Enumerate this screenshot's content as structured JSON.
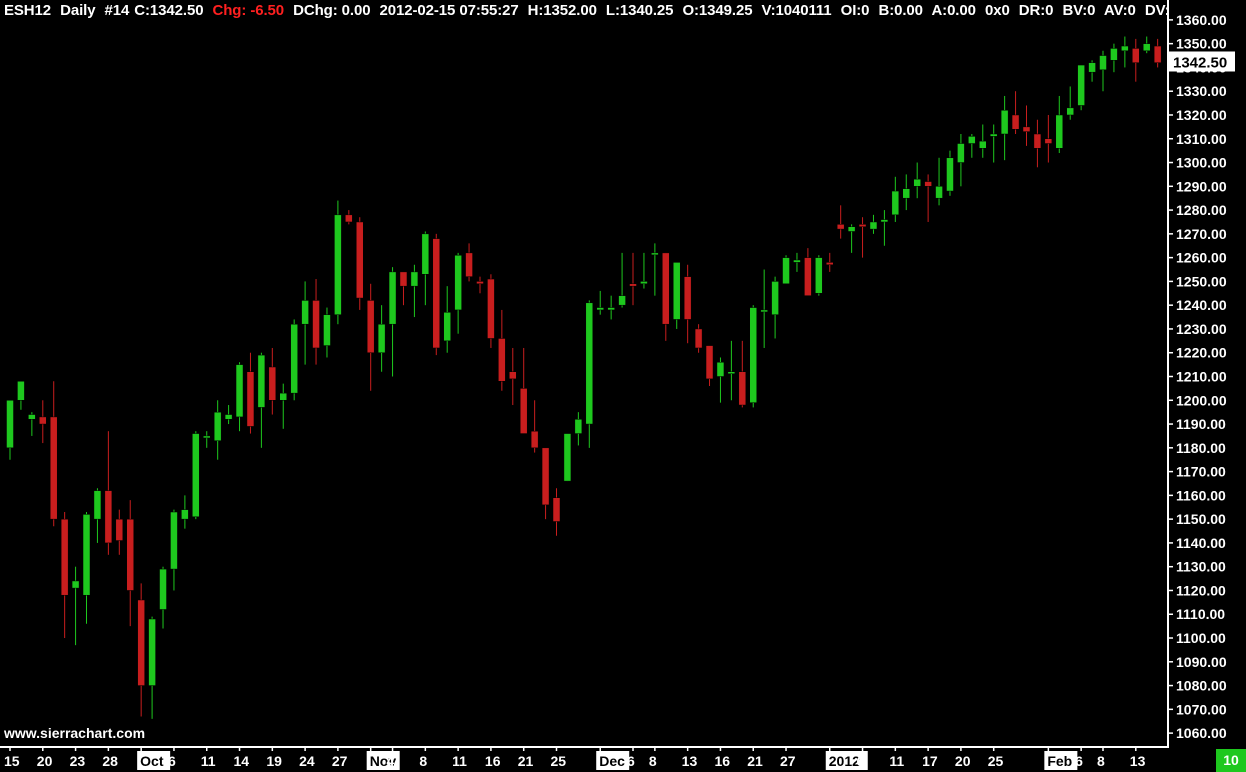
{
  "header": {
    "symbol": "ESH12",
    "timeframe": "Daily",
    "bar_index": "#14",
    "close": "C:1342.50",
    "change": "Chg: -6.50",
    "dchange": "DChg: 0.00",
    "datetime": "2012-02-15 07:55:27",
    "high": "H:1352.00",
    "low": "L:1340.25",
    "open": "O:1349.25",
    "volume": "V:1040111",
    "oi": "OI:0",
    "bid": "B:0.00",
    "ask": "A:0.00",
    "size": "0x0",
    "dr": "DR:0",
    "bv": "BV:0",
    "av": "AV:0",
    "dv": "DV:"
  },
  "watermark": "www.sierrachart.com",
  "badge": "10",
  "colors": {
    "up": "#1ec81e",
    "down": "#c81e1e",
    "wick_up": "#1ec81e",
    "wick_down": "#c81e1e",
    "background": "#000000",
    "axis": "#ffffff",
    "price_label_bg": "#ffffff"
  },
  "chart_data": {
    "type": "candlestick",
    "symbol": "ESH12",
    "ylim": [
      1055,
      1365
    ],
    "yticks": [
      1060,
      1070,
      1080,
      1090,
      1100,
      1110,
      1120,
      1130,
      1140,
      1150,
      1160,
      1170,
      1180,
      1190,
      1200,
      1210,
      1220,
      1230,
      1240,
      1250,
      1260,
      1270,
      1280,
      1290,
      1300,
      1310,
      1320,
      1330,
      1340,
      1350,
      1360
    ],
    "last_price": "1342.50",
    "xticks": [
      {
        "bar": 0,
        "label": "15",
        "month": false
      },
      {
        "bar": 3,
        "label": "20",
        "month": false
      },
      {
        "bar": 6,
        "label": "23",
        "month": false
      },
      {
        "bar": 9,
        "label": "28",
        "month": false
      },
      {
        "bar": 12,
        "label": "Oct",
        "month": true
      },
      {
        "bar": 15,
        "label": "6",
        "month": false
      },
      {
        "bar": 18,
        "label": "11",
        "month": false
      },
      {
        "bar": 21,
        "label": "14",
        "month": false
      },
      {
        "bar": 24,
        "label": "19",
        "month": false
      },
      {
        "bar": 27,
        "label": "24",
        "month": false
      },
      {
        "bar": 30,
        "label": "27",
        "month": false
      },
      {
        "bar": 33,
        "label": "Nov",
        "month": true
      },
      {
        "bar": 35,
        "label": "4",
        "month": false
      },
      {
        "bar": 38,
        "label": "8",
        "month": false
      },
      {
        "bar": 41,
        "label": "11",
        "month": false
      },
      {
        "bar": 44,
        "label": "16",
        "month": false
      },
      {
        "bar": 47,
        "label": "21",
        "month": false
      },
      {
        "bar": 50,
        "label": "25",
        "month": false
      },
      {
        "bar": 54,
        "label": "Dec",
        "month": true
      },
      {
        "bar": 57,
        "label": "6",
        "month": false
      },
      {
        "bar": 59,
        "label": "8",
        "month": false
      },
      {
        "bar": 62,
        "label": "13",
        "month": false
      },
      {
        "bar": 65,
        "label": "16",
        "month": false
      },
      {
        "bar": 68,
        "label": "21",
        "month": false
      },
      {
        "bar": 71,
        "label": "27",
        "month": false
      },
      {
        "bar": 75,
        "label": "2012",
        "month": true
      },
      {
        "bar": 78,
        "label": "6",
        "month": false
      },
      {
        "bar": 81,
        "label": "11",
        "month": false
      },
      {
        "bar": 84,
        "label": "17",
        "month": false
      },
      {
        "bar": 87,
        "label": "20",
        "month": false
      },
      {
        "bar": 90,
        "label": "25",
        "month": false
      },
      {
        "bar": 95,
        "label": "Feb",
        "month": true
      },
      {
        "bar": 98,
        "label": "6",
        "month": false
      },
      {
        "bar": 100,
        "label": "8",
        "month": false
      },
      {
        "bar": 103,
        "label": "13",
        "month": false
      }
    ],
    "bars": [
      [
        1180,
        1190,
        1175,
        1200
      ],
      [
        1200,
        1208,
        1196,
        1208
      ],
      [
        1192,
        1195,
        1185,
        1194
      ],
      [
        1193,
        1200,
        1182,
        1190
      ],
      [
        1193,
        1208,
        1147,
        1150
      ],
      [
        1150,
        1153,
        1100,
        1118
      ],
      [
        1121,
        1130,
        1097,
        1124
      ],
      [
        1118,
        1153,
        1106,
        1152
      ],
      [
        1150,
        1163,
        1140,
        1162
      ],
      [
        1162,
        1187,
        1135,
        1140
      ],
      [
        1150,
        1154,
        1135,
        1141
      ],
      [
        1150,
        1158,
        1105,
        1120
      ],
      [
        1116,
        1123,
        1067,
        1080
      ],
      [
        1080,
        1109,
        1066,
        1108
      ],
      [
        1112,
        1130,
        1104,
        1129
      ],
      [
        1129,
        1154,
        1120,
        1153
      ],
      [
        1150,
        1160,
        1146,
        1154
      ],
      [
        1151,
        1187,
        1150,
        1186
      ],
      [
        1185,
        1187,
        1180,
        1185
      ],
      [
        1183,
        1200,
        1175,
        1195
      ],
      [
        1192,
        1198,
        1190,
        1194
      ],
      [
        1193,
        1216,
        1187,
        1215
      ],
      [
        1212,
        1220,
        1186,
        1189
      ],
      [
        1197,
        1220,
        1180,
        1219
      ],
      [
        1214,
        1222,
        1194,
        1200
      ],
      [
        1200,
        1207,
        1188,
        1203
      ],
      [
        1203,
        1234,
        1200,
        1232
      ],
      [
        1232,
        1250,
        1215,
        1242
      ],
      [
        1242,
        1251,
        1215,
        1222
      ],
      [
        1223,
        1239,
        1218,
        1236
      ],
      [
        1236,
        1284,
        1232,
        1278
      ],
      [
        1278,
        1280,
        1274,
        1275
      ],
      [
        1275,
        1277,
        1238,
        1243
      ],
      [
        1242,
        1249,
        1204,
        1220
      ],
      [
        1220,
        1240,
        1212,
        1232
      ],
      [
        1232,
        1256,
        1210,
        1254
      ],
      [
        1254,
        1253,
        1240,
        1248
      ],
      [
        1248,
        1257,
        1235,
        1254
      ],
      [
        1253,
        1271,
        1240,
        1270
      ],
      [
        1268,
        1270,
        1219,
        1222
      ],
      [
        1225,
        1248,
        1220,
        1237
      ],
      [
        1238,
        1262,
        1228,
        1261
      ],
      [
        1262,
        1266,
        1250,
        1252
      ],
      [
        1250,
        1252,
        1245,
        1249
      ],
      [
        1251,
        1253,
        1222,
        1226
      ],
      [
        1226,
        1238,
        1204,
        1208
      ],
      [
        1212,
        1222,
        1198,
        1209
      ],
      [
        1205,
        1222,
        1187,
        1186
      ],
      [
        1187,
        1200,
        1178,
        1180
      ],
      [
        1180,
        1175,
        1150,
        1156
      ],
      [
        1159,
        1163,
        1143,
        1149
      ],
      [
        1166,
        1185,
        1166,
        1186
      ],
      [
        1186,
        1195,
        1181,
        1192
      ],
      [
        1190,
        1242,
        1180,
        1241
      ],
      [
        1238,
        1246,
        1236,
        1239
      ],
      [
        1238,
        1244,
        1234,
        1239
      ],
      [
        1240,
        1262,
        1239,
        1244
      ],
      [
        1249,
        1262,
        1240,
        1248
      ],
      [
        1249,
        1262,
        1247,
        1250
      ],
      [
        1262,
        1266,
        1244,
        1262
      ],
      [
        1262,
        1262,
        1225,
        1232
      ],
      [
        1234,
        1256,
        1230,
        1258
      ],
      [
        1252,
        1257,
        1224,
        1234
      ],
      [
        1230,
        1232,
        1220,
        1222
      ],
      [
        1223,
        1220,
        1206,
        1209
      ],
      [
        1210,
        1218,
        1199,
        1216
      ],
      [
        1212,
        1225,
        1200,
        1212
      ],
      [
        1212,
        1225,
        1197,
        1198
      ],
      [
        1199,
        1240,
        1197,
        1239
      ],
      [
        1238,
        1255,
        1222,
        1238
      ],
      [
        1236,
        1252,
        1226,
        1250
      ],
      [
        1249,
        1261,
        1249,
        1260
      ],
      [
        1258,
        1262,
        1254,
        1259
      ],
      [
        1260,
        1264,
        1245,
        1244
      ],
      [
        1245,
        1261,
        1244,
        1260
      ],
      [
        1258,
        1262,
        1254,
        1257
      ],
      [
        1274,
        1282,
        1268,
        1272
      ],
      [
        1271,
        1274,
        1262,
        1273
      ],
      [
        1274,
        1277,
        1260,
        1273
      ],
      [
        1272,
        1278,
        1270,
        1275
      ],
      [
        1275,
        1280,
        1265,
        1276
      ],
      [
        1278,
        1294,
        1275,
        1288
      ],
      [
        1285,
        1295,
        1280,
        1289
      ],
      [
        1290,
        1300,
        1285,
        1293
      ],
      [
        1292,
        1295,
        1275,
        1290
      ],
      [
        1285,
        1302,
        1282,
        1290
      ],
      [
        1288,
        1305,
        1286,
        1302
      ],
      [
        1300,
        1312,
        1290,
        1308
      ],
      [
        1308,
        1312,
        1302,
        1311
      ],
      [
        1306,
        1316,
        1302,
        1309
      ],
      [
        1311,
        1316,
        1300,
        1312
      ],
      [
        1312,
        1328,
        1301,
        1322
      ],
      [
        1320,
        1330,
        1312,
        1314
      ],
      [
        1315,
        1324,
        1307,
        1313
      ],
      [
        1312,
        1318,
        1298,
        1306
      ],
      [
        1310,
        1320,
        1300,
        1308
      ],
      [
        1306,
        1328,
        1304,
        1320
      ],
      [
        1320,
        1332,
        1318,
        1323
      ],
      [
        1324,
        1341,
        1322,
        1341
      ],
      [
        1338,
        1343,
        1334,
        1342
      ],
      [
        1339,
        1347,
        1330,
        1345
      ],
      [
        1343,
        1350,
        1338,
        1348
      ],
      [
        1347,
        1353,
        1340,
        1349
      ],
      [
        1348,
        1352,
        1334,
        1342
      ],
      [
        1347,
        1353,
        1346,
        1350
      ],
      [
        1349,
        1352,
        1340,
        1342
      ]
    ]
  }
}
